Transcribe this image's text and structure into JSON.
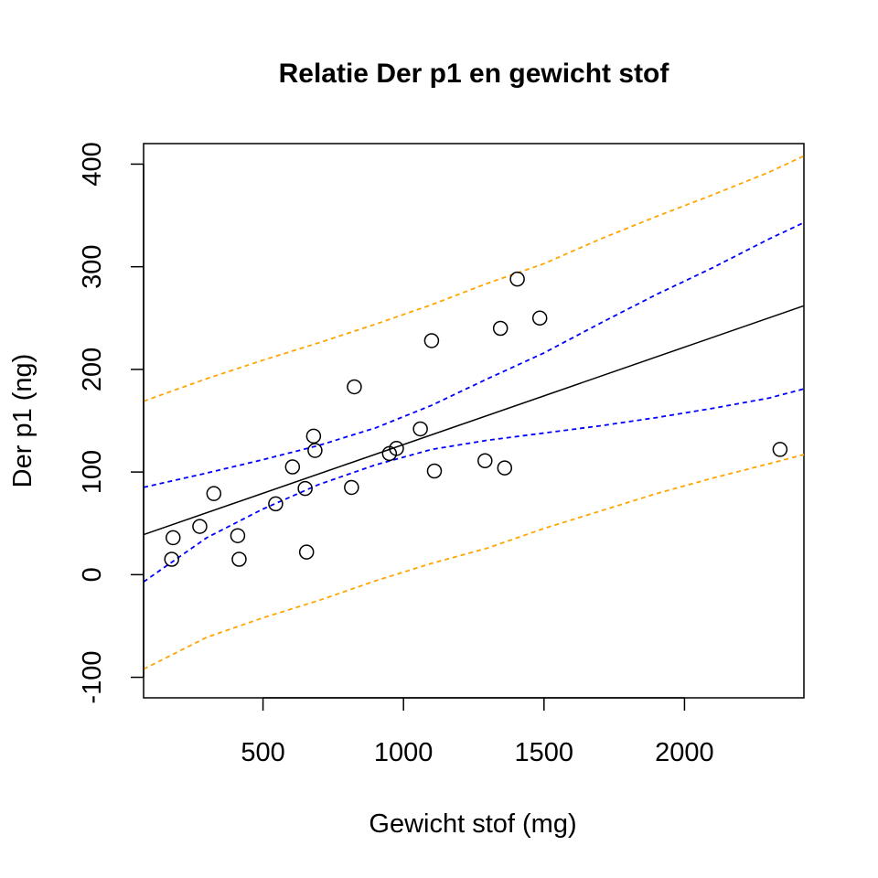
{
  "chart_data": {
    "type": "scatter",
    "title": "Relatie Der p1 en gewicht stof",
    "xlabel": "Gewicht stof (mg)",
    "ylabel": "Der p1 (ng)",
    "xlim": [
      75,
      2425
    ],
    "ylim": [
      -120,
      420
    ],
    "x_ticks": [
      500,
      1000,
      1500,
      2000
    ],
    "y_ticks": [
      -100,
      0,
      100,
      200,
      300,
      400
    ],
    "points": [
      {
        "x": 175,
        "y": 15
      },
      {
        "x": 180,
        "y": 36
      },
      {
        "x": 275,
        "y": 47
      },
      {
        "x": 325,
        "y": 79
      },
      {
        "x": 410,
        "y": 38
      },
      {
        "x": 415,
        "y": 15
      },
      {
        "x": 545,
        "y": 69
      },
      {
        "x": 605,
        "y": 105
      },
      {
        "x": 650,
        "y": 84
      },
      {
        "x": 655,
        "y": 22
      },
      {
        "x": 680,
        "y": 135
      },
      {
        "x": 685,
        "y": 121
      },
      {
        "x": 815,
        "y": 85
      },
      {
        "x": 825,
        "y": 183
      },
      {
        "x": 950,
        "y": 118
      },
      {
        "x": 975,
        "y": 123
      },
      {
        "x": 1060,
        "y": 142
      },
      {
        "x": 1100,
        "y": 228
      },
      {
        "x": 1110,
        "y": 101
      },
      {
        "x": 1290,
        "y": 111
      },
      {
        "x": 1345,
        "y": 240
      },
      {
        "x": 1360,
        "y": 104
      },
      {
        "x": 1405,
        "y": 288
      },
      {
        "x": 1485,
        "y": 250
      },
      {
        "x": 2340,
        "y": 122
      }
    ],
    "fit_line": {
      "x": [
        75,
        2425
      ],
      "y": [
        39,
        262
      ],
      "color": "#000000"
    },
    "confidence_band": {
      "color": "#0000ff",
      "x": [
        75,
        300,
        500,
        700,
        900,
        1100,
        1300,
        1500,
        1700,
        1900,
        2100,
        2300,
        2425
      ],
      "upper": [
        85,
        99,
        112,
        126,
        143,
        165,
        191,
        216,
        245,
        273,
        299,
        327,
        343
      ],
      "lower": [
        -7,
        36,
        64,
        88,
        107,
        122,
        131,
        138,
        145,
        153,
        162,
        172,
        181
      ]
    },
    "prediction_band": {
      "color": "#ffa500",
      "x": [
        75,
        300,
        500,
        700,
        900,
        1100,
        1300,
        1500,
        1700,
        1900,
        2100,
        2300,
        2425
      ],
      "upper": [
        169,
        191,
        209,
        226,
        244,
        263,
        284,
        303,
        327,
        349,
        370,
        392,
        408
      ],
      "lower": [
        -92,
        -61,
        -42,
        -25,
        -6,
        11,
        26,
        45,
        62,
        79,
        94,
        108,
        117
      ]
    },
    "grid": false
  }
}
